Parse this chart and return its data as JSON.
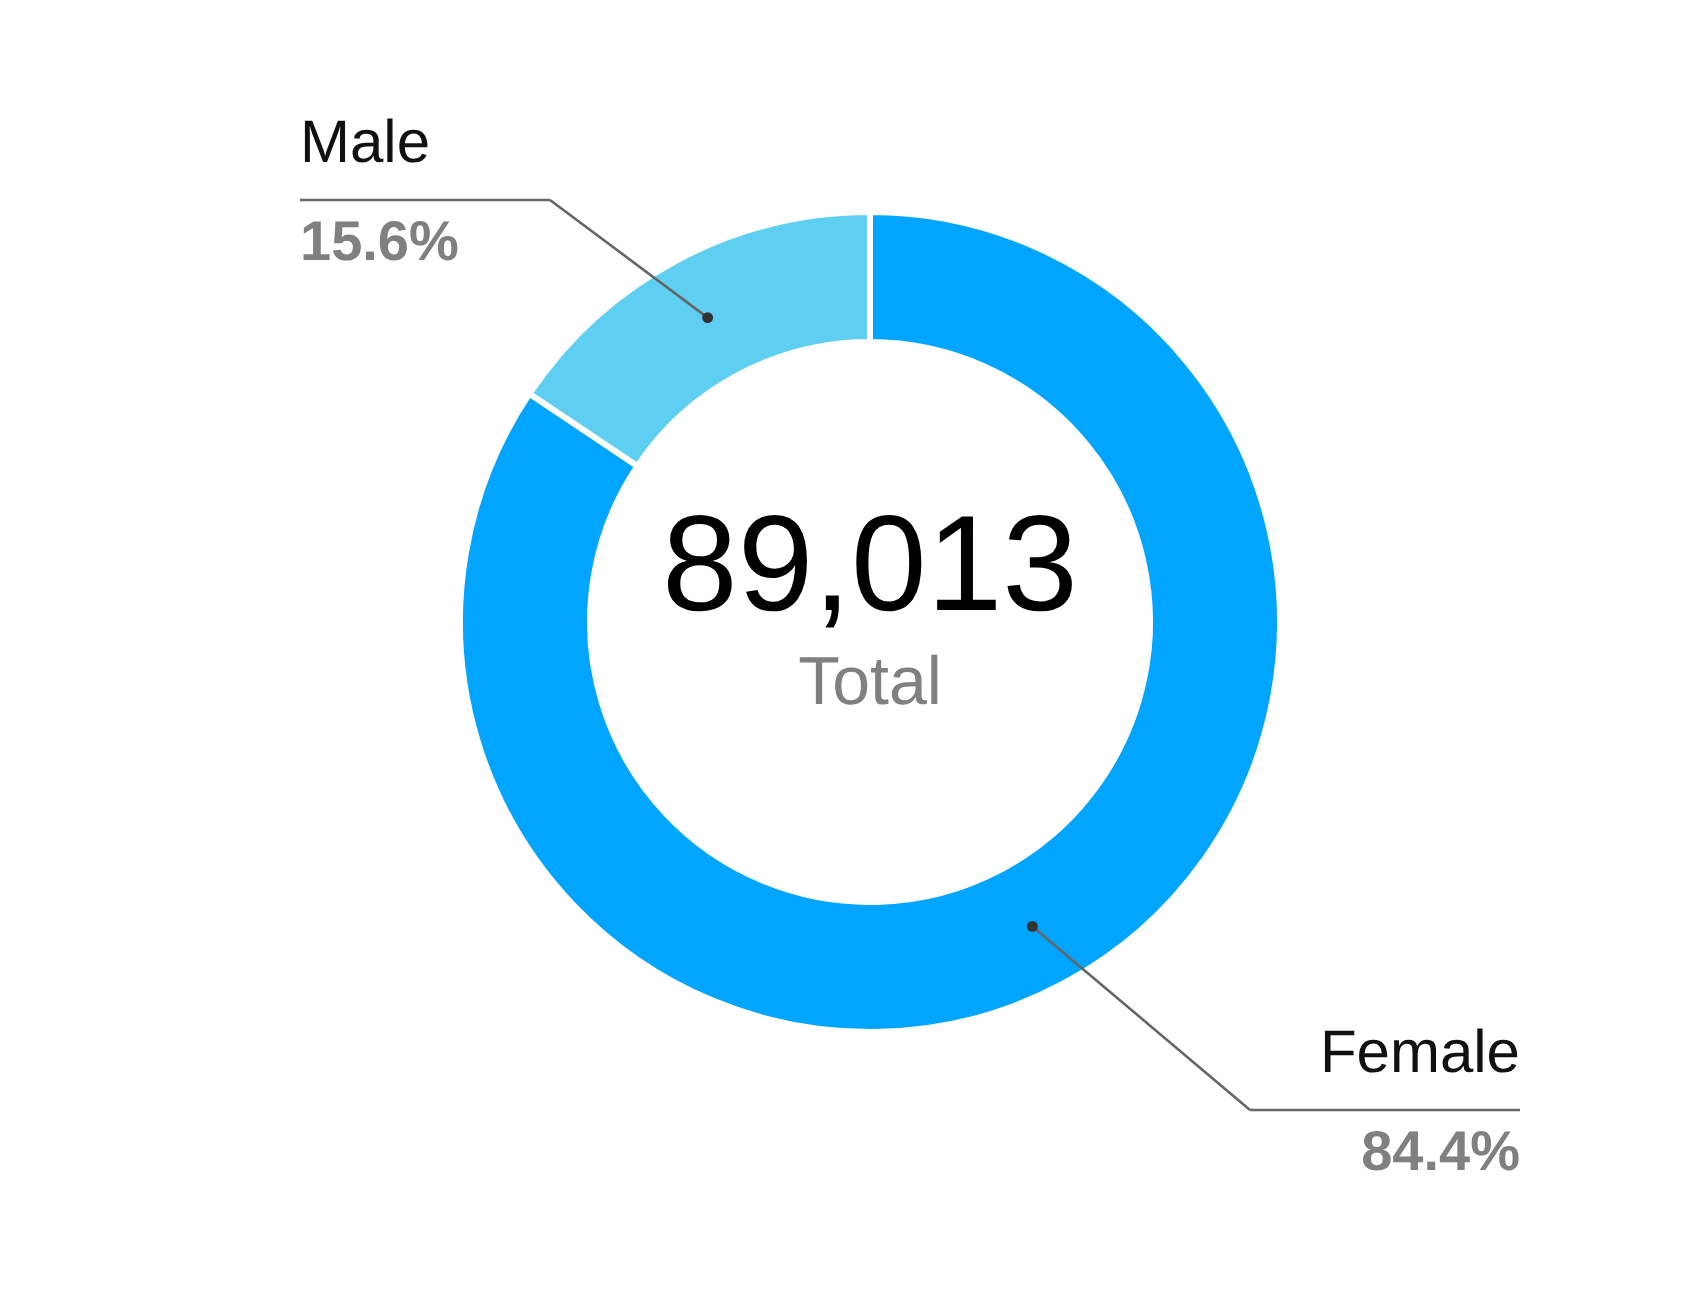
{
  "chart_data": {
    "type": "donut",
    "categories": [
      "Female",
      "Male"
    ],
    "values": [
      84.4,
      15.6
    ],
    "colors": [
      "#00a5ff",
      "#5ecff0"
    ],
    "value_labels": [
      "84.4%",
      "15.6%"
    ],
    "annotations": [
      "89,013",
      "Total"
    ]
  }
}
